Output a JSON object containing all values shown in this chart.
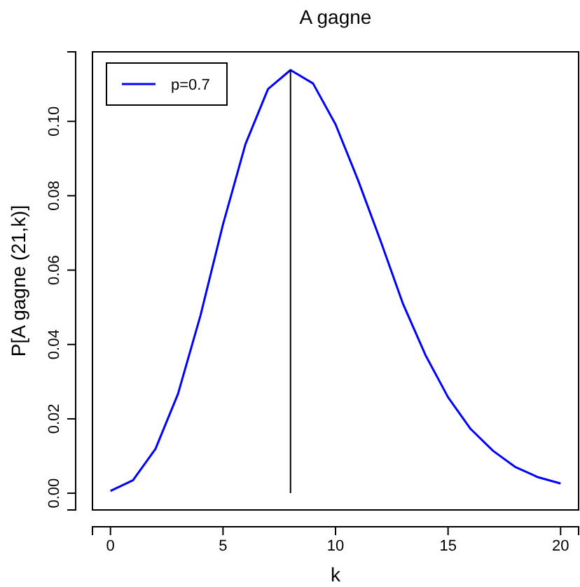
{
  "chart_data": {
    "type": "line",
    "title": "A gagne",
    "xlabel": "k",
    "ylabel": "P[A gagne (21,k)]",
    "xlim": [
      -0.8,
      20.8
    ],
    "ylim": [
      -0.0045,
      0.1187
    ],
    "xticks": [
      0,
      5,
      10,
      15,
      20
    ],
    "yticks": [
      {
        "value": 0,
        "label": "0.00"
      },
      {
        "value": 0.02,
        "label": "0.02"
      },
      {
        "value": 0.04,
        "label": "0.04"
      },
      {
        "value": 0.06,
        "label": "0.06"
      },
      {
        "value": 0.08,
        "label": "0.08"
      },
      {
        "value": 0.1,
        "label": "0.10"
      }
    ],
    "legend": "top left",
    "grid": false,
    "series": [
      {
        "name": "p=0.7",
        "color": "#0000ff",
        "x": [
          0,
          1,
          2,
          3,
          4,
          5,
          6,
          7,
          8,
          9,
          10,
          11,
          12,
          13,
          14,
          15,
          16,
          17,
          18,
          19,
          20
        ],
        "values": [
          0.0006,
          0.0035,
          0.0119,
          0.0267,
          0.0478,
          0.0723,
          0.0939,
          0.1087,
          0.1138,
          0.1102,
          0.0992,
          0.0842,
          0.0679,
          0.0509,
          0.0371,
          0.0258,
          0.0173,
          0.0114,
          0.007,
          0.0043,
          0.0026
        ]
      },
      {
        "type": "line",
        "color": "#000000",
        "x": [
          8,
          8
        ],
        "values": [
          0,
          0.1138
        ]
      }
    ]
  }
}
